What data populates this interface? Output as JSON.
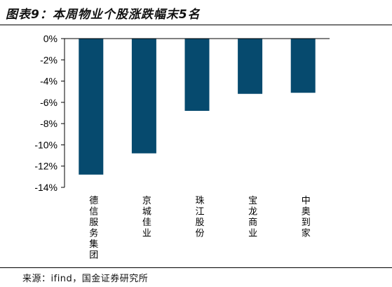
{
  "title": "图表9：本周物业个股涨跌幅末5名",
  "source": "来源：ifind，国金证券研究所",
  "colors": {
    "bar": "#064a6e",
    "axis": "#000000"
  },
  "chart_data": {
    "type": "bar",
    "title": "图表9：本周物业个股涨跌幅末5名",
    "xlabel": "",
    "ylabel": "",
    "categories": [
      "德信服务集团",
      "京城佳业",
      "珠江股份",
      "宝龙商业",
      "中奥到家"
    ],
    "values": [
      -12.8,
      -10.8,
      -6.8,
      -5.2,
      -5.1
    ],
    "ylim": [
      -14,
      0
    ],
    "y_ticks": [
      0,
      -2,
      -4,
      -6,
      -8,
      -10,
      -12,
      -14
    ],
    "y_tick_labels": [
      "0%",
      "-2%",
      "-4%",
      "-6%",
      "-8%",
      "-10%",
      "-12%",
      "-14%"
    ],
    "grid": false,
    "legend": "none"
  }
}
